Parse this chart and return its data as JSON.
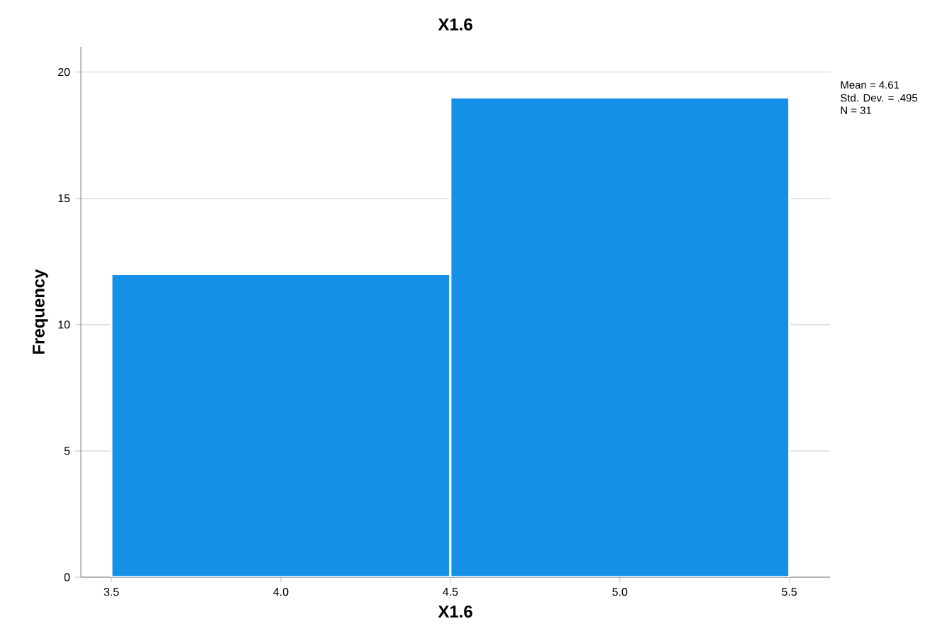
{
  "chart_data": {
    "type": "histogram",
    "title": "X1.6",
    "xlabel": "X1.6",
    "ylabel": "Frequency",
    "bins": [
      3.5,
      4.5,
      5.5
    ],
    "values": [
      12,
      19
    ],
    "color": "#1490e6",
    "xlim": [
      3.41,
      5.62
    ],
    "ylim": [
      0,
      21
    ],
    "xticks": [
      3.5,
      {
        "value": 4,
        "label": "4.0"
      },
      4.5,
      {
        "value": 5,
        "label": "5.0"
      },
      5.5
    ],
    "yticks": [
      0,
      5,
      10,
      15,
      20
    ],
    "grid": "y",
    "annotations": [
      "Mean = 4.61",
      "Std. Dev. = .495",
      "N = 31"
    ]
  }
}
